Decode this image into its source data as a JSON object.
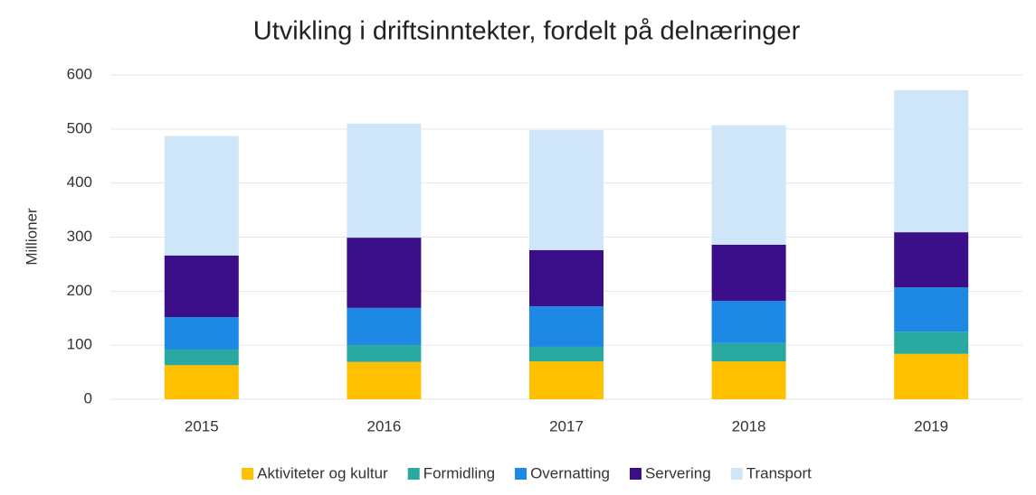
{
  "chart_data": {
    "type": "bar",
    "stacked": true,
    "title": "Utvikling i driftsinntekter, fordelt på delnæringer",
    "y_label": "Millioner",
    "categories": [
      "2015",
      "2016",
      "2017",
      "2018",
      "2019"
    ],
    "series": [
      {
        "name": "Aktiviteter og kultur",
        "color": "#ffc000",
        "values": [
          63,
          69,
          70,
          70,
          84
        ]
      },
      {
        "name": "Formidling",
        "color": "#2aa9a0",
        "values": [
          29,
          31,
          27,
          34,
          41
        ]
      },
      {
        "name": "Overnatting",
        "color": "#1e88e5",
        "values": [
          60,
          69,
          75,
          78,
          82
        ]
      },
      {
        "name": "Servering",
        "color": "#3b0f8a",
        "values": [
          114,
          130,
          104,
          104,
          102
        ]
      },
      {
        "name": "Transport",
        "color": "#cfe5f8",
        "values": [
          221,
          211,
          222,
          221,
          263
        ]
      }
    ],
    "ylim": [
      0,
      600
    ],
    "yticks": [
      0,
      100,
      200,
      300,
      400,
      500,
      600
    ],
    "grid": true,
    "legend": "bottom"
  }
}
